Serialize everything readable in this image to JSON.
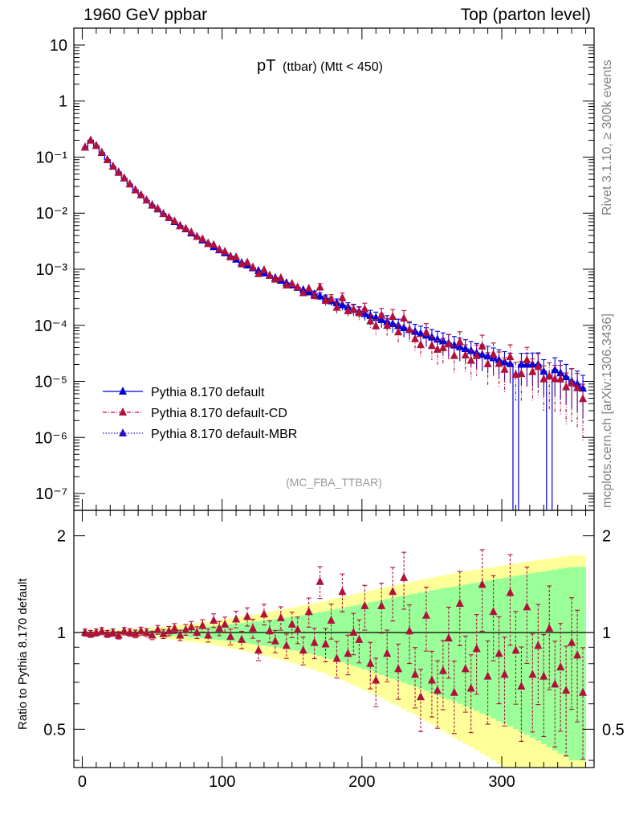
{
  "header": {
    "left": "1960 GeV ppbar",
    "right": "Top (parton level)"
  },
  "side": {
    "rivet": "Rivet 3.1.10, ≥ 300k events",
    "mcplots": "mcplots.cern.ch [arXiv:1306.3436]"
  },
  "plot_title": {
    "main": "pT",
    "sub": "(ttbar) (Mtt < 450)"
  },
  "watermark": "(MC_FBA_TTBAR)",
  "ratio_ylabel": "Ratio to Pythia 8.170 default",
  "legend": [
    {
      "label": "Pythia 8.170 default",
      "color": "#0000dd",
      "style": "solid"
    },
    {
      "label": "Pythia 8.170 default-CD",
      "color": "#b0103a",
      "style": "dashdot"
    },
    {
      "label": "Pythia 8.170 default-MBR",
      "color": "#2a0fbf",
      "style": "dotted"
    }
  ],
  "colors": {
    "band_outer": "#ffff99",
    "band_inner": "#99ff99",
    "default": "#0000dd",
    "cd": "#b0103a",
    "mbr": "#2a0fbf"
  },
  "chart_data": [
    {
      "type": "line",
      "panel": "main",
      "title": "pT (ttbar) (Mtt < 450)",
      "xlabel": "",
      "ylabel": "",
      "xlim": [
        -6,
        366
      ],
      "ylim": [
        5e-08,
        20
      ],
      "yscale": "log",
      "grid": false,
      "legend_position": "lower-left",
      "x_ticks": [
        "0",
        "100",
        "200",
        "300"
      ],
      "y_ticks": [
        "10⁻⁷",
        "10⁻⁶",
        "10⁻⁵",
        "10⁻⁴",
        "10⁻³",
        "10⁻²",
        "10⁻¹",
        "1",
        "10"
      ],
      "x": [
        2,
        6,
        10,
        14,
        18,
        22,
        26,
        30,
        34,
        38,
        42,
        46,
        50,
        54,
        58,
        62,
        66,
        70,
        74,
        78,
        82,
        86,
        90,
        94,
        98,
        102,
        106,
        110,
        114,
        118,
        122,
        126,
        130,
        134,
        138,
        142,
        146,
        150,
        154,
        158,
        162,
        166,
        170,
        174,
        178,
        182,
        186,
        190,
        194,
        198,
        202,
        206,
        210,
        214,
        218,
        222,
        226,
        230,
        234,
        238,
        242,
        246,
        250,
        254,
        258,
        262,
        266,
        270,
        274,
        278,
        282,
        286,
        290,
        294,
        298,
        302,
        306,
        310,
        314,
        318,
        322,
        326,
        330,
        334,
        338,
        342,
        346,
        350,
        354,
        358
      ],
      "series": [
        {
          "name": "Pythia 8.170 default",
          "values": [
            0.15,
            0.2,
            0.16,
            0.12,
            0.09,
            0.068,
            0.054,
            0.042,
            0.033,
            0.026,
            0.021,
            0.017,
            0.014,
            0.0118,
            0.0098,
            0.0083,
            0.007,
            0.006,
            0.0052,
            0.0044,
            0.0038,
            0.0033,
            0.0029,
            0.0025,
            0.0022,
            0.00195,
            0.0017,
            0.0015,
            0.0013,
            0.00118,
            0.00105,
            0.00094,
            0.00085,
            0.00077,
            0.0007,
            0.00063,
            0.00057,
            0.00052,
            0.00047,
            0.00043,
            0.00039,
            0.00036,
            0.00033,
            0.0003,
            0.00027,
            0.00025,
            0.00023,
            0.00021,
            0.00019,
            0.000175,
            0.00016,
            0.000148,
            0.000136,
            0.000125,
            0.000115,
            0.000106,
            9.8e-05,
            9e-05,
            8.3e-05,
            7.7e-05,
            7.1e-05,
            6.6e-05,
            6.1e-05,
            5.6e-05,
            5.2e-05,
            4.8e-05,
            4.4e-05,
            4.1e-05,
            3.8e-05,
            3.5e-05,
            3.2e-05,
            3e-05,
            2.8e-05,
            2.6e-05,
            2.4e-05,
            2.2e-05,
            2.05e-05,
            1e-09,
            2e-05,
            2e-05,
            2e-05,
            2e-05,
            1.5e-05,
            1e-09,
            1.6e-05,
            1.4e-05,
            1.2e-05,
            1e-05,
            9e-06,
            7.5e-06
          ]
        },
        {
          "name": "Pythia 8.170 default-CD",
          "values": [
            0.15,
            0.2,
            0.16,
            0.12,
            0.09,
            0.068,
            0.054,
            0.042,
            0.033,
            0.026,
            0.021,
            0.017,
            0.014,
            0.0118,
            0.0098,
            0.0083,
            0.007,
            0.006,
            0.0052,
            0.0044,
            0.0038,
            0.0033,
            0.0029,
            0.0025,
            0.0022,
            0.00195,
            0.0017,
            0.0015,
            0.0013,
            0.00118,
            0.00105,
            0.00094,
            0.00085,
            0.00077,
            0.0007,
            0.00063,
            0.00057,
            0.00052,
            0.00047,
            0.00043,
            0.00039,
            0.00036,
            0.00033,
            0.0003,
            0.00027,
            0.00025,
            0.00023,
            0.00021,
            0.00019,
            0.000175,
            0.00016,
            0.000148,
            0.000136,
            0.000125,
            0.000115,
            0.000106,
            9.8e-05,
            9e-05,
            8.3e-05,
            7.7e-05,
            7.1e-05,
            6.6e-05,
            6.1e-05,
            5.6e-05,
            5.2e-05,
            4.8e-05,
            4.4e-05,
            4.1e-05,
            3.8e-05,
            3.5e-05,
            3.2e-05,
            3e-05,
            2.8e-05,
            2.6e-05,
            2.4e-05,
            2.2e-05,
            2.05e-05,
            1.5e-05,
            2e-05,
            2e-05,
            2e-05,
            2e-05,
            1.5e-05,
            1.2e-05,
            1.6e-05,
            1.4e-05,
            1.2e-05,
            1e-05,
            9e-06,
            7.5e-06
          ]
        }
      ]
    },
    {
      "type": "scatter",
      "panel": "ratio",
      "title": "",
      "xlabel": "",
      "ylabel": "Ratio to Pythia 8.170 default",
      "xlim": [
        -6,
        366
      ],
      "ylim": [
        0.38,
        2.4
      ],
      "yscale": "log",
      "grid": false,
      "x_ticks": [
        "0",
        "100",
        "200",
        "300"
      ],
      "y_ticks": [
        "0.5",
        "1",
        "2"
      ],
      "reference_line": 1,
      "x": [
        2,
        6,
        10,
        14,
        18,
        22,
        26,
        30,
        34,
        38,
        42,
        46,
        50,
        54,
        58,
        62,
        66,
        70,
        74,
        78,
        82,
        86,
        90,
        94,
        98,
        102,
        106,
        110,
        114,
        118,
        122,
        126,
        130,
        134,
        138,
        142,
        146,
        150,
        154,
        158,
        162,
        166,
        170,
        174,
        178,
        182,
        186,
        190,
        194,
        198,
        202,
        206,
        210,
        214,
        218,
        222,
        226,
        230,
        234,
        238,
        242,
        246,
        250,
        254,
        258,
        262,
        266,
        270,
        274,
        278,
        282,
        286,
        290,
        294,
        298,
        302,
        306,
        310,
        314,
        318,
        322,
        326,
        330,
        334,
        338,
        342,
        346,
        350,
        354,
        358
      ],
      "band_inner_rel": [
        0.008,
        0.008,
        0.008,
        0.009,
        0.009,
        0.01,
        0.01,
        0.011,
        0.012,
        0.013,
        0.014,
        0.015,
        0.017,
        0.019,
        0.021,
        0.023,
        0.025,
        0.028,
        0.031,
        0.034,
        0.037,
        0.04,
        0.044,
        0.048,
        0.052,
        0.056,
        0.061,
        0.066,
        0.07,
        0.075,
        0.08,
        0.085,
        0.09,
        0.095,
        0.1,
        0.106,
        0.112,
        0.118,
        0.125,
        0.132,
        0.14,
        0.148,
        0.156,
        0.165,
        0.174,
        0.183,
        0.192,
        0.202,
        0.212,
        0.222,
        0.232,
        0.242,
        0.252,
        0.262,
        0.272,
        0.282,
        0.292,
        0.302,
        0.312,
        0.322,
        0.332,
        0.342,
        0.352,
        0.362,
        0.372,
        0.382,
        0.39,
        0.4,
        0.41,
        0.42,
        0.43,
        0.44,
        0.45,
        0.46,
        0.47,
        0.48,
        0.49,
        0.5,
        0.51,
        0.52,
        0.53,
        0.54,
        0.55,
        0.56,
        0.57,
        0.58,
        0.59,
        0.6,
        0.6,
        0.6
      ],
      "band_outer_rel": [
        0.016,
        0.016,
        0.017,
        0.018,
        0.019,
        0.02,
        0.021,
        0.023,
        0.025,
        0.027,
        0.029,
        0.032,
        0.035,
        0.038,
        0.042,
        0.046,
        0.05,
        0.055,
        0.06,
        0.065,
        0.07,
        0.075,
        0.081,
        0.087,
        0.093,
        0.1,
        0.107,
        0.114,
        0.121,
        0.128,
        0.136,
        0.144,
        0.152,
        0.16,
        0.168,
        0.177,
        0.186,
        0.195,
        0.205,
        0.215,
        0.225,
        0.235,
        0.246,
        0.257,
        0.268,
        0.279,
        0.29,
        0.302,
        0.314,
        0.326,
        0.338,
        0.35,
        0.362,
        0.374,
        0.386,
        0.398,
        0.41,
        0.422,
        0.434,
        0.446,
        0.458,
        0.47,
        0.482,
        0.494,
        0.506,
        0.518,
        0.53,
        0.54,
        0.55,
        0.56,
        0.57,
        0.58,
        0.59,
        0.6,
        0.61,
        0.62,
        0.63,
        0.64,
        0.65,
        0.66,
        0.67,
        0.68,
        0.69,
        0.7,
        0.71,
        0.72,
        0.73,
        0.74,
        0.74,
        0.74
      ],
      "series": [
        {
          "name": "Pythia 8.170 default-CD",
          "values": [
            1.0,
            0.99,
            1.0,
            1.01,
            0.99,
            1.0,
            0.98,
            1.01,
            1.0,
            0.99,
            1.01,
            1.0,
            0.98,
            1.02,
            0.99,
            1.01,
            1.03,
            0.98,
            1.02,
            1.04,
            1.0,
            1.05,
            0.98,
            1.09,
            1.03,
            1.06,
            0.97,
            1.1,
            0.95,
            1.12,
            1.03,
            0.88,
            1.14,
            1.01,
            0.94,
            1.11,
            0.91,
            1.06,
            1.02,
            0.88,
            1.16,
            0.93,
            1.44,
            0.92,
            1.09,
            0.83,
            1.34,
            0.86,
            1.0,
            0.95,
            1.21,
            0.8,
            0.71,
            1.21,
            0.86,
            1.34,
            0.77,
            1.48,
            1.01,
            0.74,
            0.63,
            1.13,
            0.71,
            0.66,
            0.76,
            0.96,
            0.65,
            1.23,
            0.77,
            0.67,
            0.89,
            1.41,
            0.73,
            1.16,
            0.86,
            0.74,
            1.33,
            0.88,
            0.68,
            1.2,
            0.74,
            0.91,
            0.73,
            1.03,
            0.69,
            0.78,
            0.66,
            0.93,
            0.85,
            0.65
          ]
        }
      ]
    }
  ]
}
